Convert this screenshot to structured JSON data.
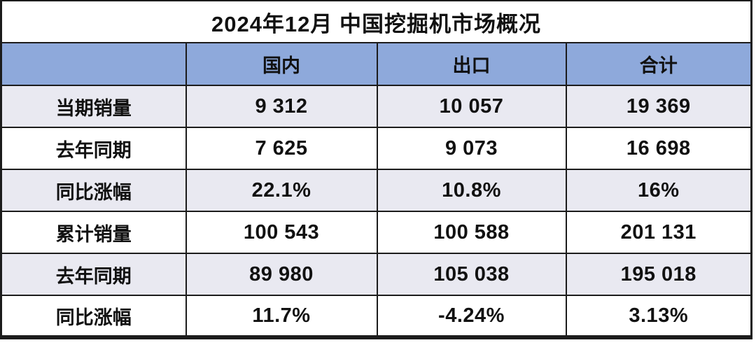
{
  "title": "2024年12月 中国挖掘机市场概况",
  "colors": {
    "header_bg": "#8EA9DB",
    "row_alt_bg": "#E9E9F1",
    "border": "#1C1C1C"
  },
  "chart_data": {
    "type": "table",
    "title": "2024年12月 中国挖掘机市场概况",
    "columns": [
      "",
      "国内",
      "出口",
      "合计"
    ],
    "rows": [
      {
        "label": "当期销量",
        "values": [
          "9 312",
          "10 057",
          "19 369"
        ]
      },
      {
        "label": "去年同期",
        "values": [
          "7 625",
          "9 073",
          "16 698"
        ]
      },
      {
        "label": "同比涨幅",
        "values": [
          "22.1%",
          "10.8%",
          "16%"
        ]
      },
      {
        "label": "累计销量",
        "values": [
          "100 543",
          "100 588",
          "201 131"
        ]
      },
      {
        "label": "去年同期",
        "values": [
          "89 980",
          "105 038",
          "195 018"
        ]
      },
      {
        "label": "同比涨幅",
        "values": [
          "11.7%",
          "-4.24%",
          "3.13%"
        ]
      }
    ]
  }
}
